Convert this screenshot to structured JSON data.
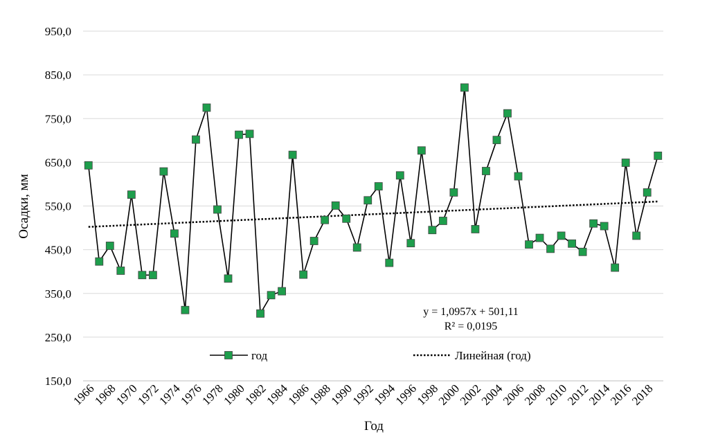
{
  "chart_data": {
    "type": "line",
    "title": "",
    "xlabel": "Год",
    "ylabel": "Осадки, мм",
    "ylim": [
      150,
      950
    ],
    "yticks": [
      150,
      250,
      350,
      450,
      550,
      650,
      750,
      850,
      950
    ],
    "ytick_labels": [
      "150,0",
      "250,0",
      "350,0",
      "450,0",
      "550,0",
      "650,0",
      "750,0",
      "850,0",
      "950,0"
    ],
    "x_tick_labels": [
      "1966",
      "1968",
      "1970",
      "1972",
      "1974",
      "1976",
      "1978",
      "1980",
      "1982",
      "1984",
      "1986",
      "1988",
      "1990",
      "1992",
      "1994",
      "1996",
      "1998",
      "2000",
      "2002",
      "2004",
      "2006",
      "2008",
      "2010",
      "2012",
      "2014",
      "2016",
      "2018"
    ],
    "grid": true,
    "x": [
      1966,
      1967,
      1968,
      1969,
      1970,
      1971,
      1972,
      1973,
      1974,
      1975,
      1976,
      1977,
      1978,
      1979,
      1980,
      1981,
      1982,
      1983,
      1984,
      1985,
      1986,
      1987,
      1988,
      1989,
      1990,
      1991,
      1992,
      1993,
      1994,
      1995,
      1996,
      1997,
      1998,
      1999,
      2000,
      2001,
      2002,
      2003,
      2004,
      2005,
      2006,
      2007,
      2008,
      2009,
      2010,
      2011,
      2012,
      2013,
      2014,
      2015,
      2016,
      2017,
      2018,
      2019
    ],
    "series": [
      {
        "name": "год",
        "color": "#1e9e4c",
        "values": [
          643,
          423,
          459,
          402,
          576,
          392,
          392,
          629,
          487,
          312,
          702,
          775,
          542,
          384,
          713,
          715,
          304,
          346,
          355,
          667,
          393,
          470,
          518,
          551,
          521,
          455,
          563,
          595,
          420,
          620,
          465,
          677,
          495,
          516,
          581,
          821,
          497,
          630,
          701,
          762,
          618,
          462,
          477,
          452,
          482,
          464,
          445,
          510,
          504,
          409,
          649,
          482,
          581,
          665
        ]
      }
    ],
    "trendline": {
      "name": "Линейная (год)",
      "slope": 1.0957,
      "intercept": 501.11,
      "style": "dotted"
    },
    "annotations": {
      "equation": "y = 1,0957x + 501,11",
      "r_squared": "R² = 0,0195"
    },
    "legend": {
      "placement": "bottom-inside",
      "series_label": "год",
      "trend_label": "Линейная (год)"
    }
  }
}
